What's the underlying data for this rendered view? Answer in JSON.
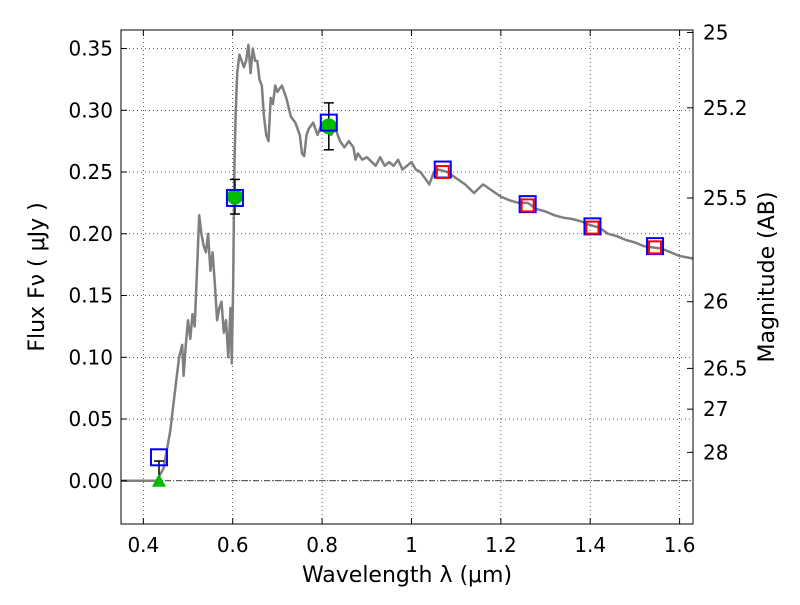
{
  "chart_data": {
    "type": "line",
    "xlabel": "Wavelength  λ (μm)",
    "ylabel": "Flux  Fν  ( μJy )",
    "ylabel_right": "Magnitude (AB)",
    "xlim": [
      0.35,
      1.63
    ],
    "ylim": [
      -0.035,
      0.365
    ],
    "grid": true,
    "x_ticks": [
      0.4,
      0.6,
      0.8,
      1.0,
      1.2,
      1.4,
      1.6
    ],
    "x_tick_labels": [
      "0.4",
      "0.6",
      "0.8",
      "1",
      "1.2",
      "1.4",
      "1.6"
    ],
    "y_ticks": [
      0.0,
      0.05,
      0.1,
      0.15,
      0.2,
      0.25,
      0.3,
      0.35
    ],
    "y_tick_labels": [
      "0.00",
      "0.05",
      "0.10",
      "0.15",
      "0.20",
      "0.25",
      "0.30",
      "0.35"
    ],
    "right_ticks": [
      {
        "label": "25",
        "flux": 0.363
      },
      {
        "label": "25.2",
        "flux": 0.302
      },
      {
        "label": "25.5",
        "flux": 0.229
      },
      {
        "label": "26",
        "flux": 0.145
      },
      {
        "label": "26.5",
        "flux": 0.091
      },
      {
        "label": "27",
        "flux": 0.058
      },
      {
        "label": "28",
        "flux": 0.023
      }
    ],
    "series": [
      {
        "name": "model SED",
        "kind": "line",
        "color": "#7f7f7f",
        "x": [
          0.35,
          0.43,
          0.445,
          0.46,
          0.47,
          0.48,
          0.487,
          0.49,
          0.495,
          0.5,
          0.505,
          0.51,
          0.515,
          0.52,
          0.525,
          0.53,
          0.535,
          0.54,
          0.545,
          0.55,
          0.555,
          0.56,
          0.565,
          0.57,
          0.575,
          0.58,
          0.585,
          0.59,
          0.595,
          0.598,
          0.601,
          0.604,
          0.607,
          0.61,
          0.615,
          0.62,
          0.625,
          0.63,
          0.635,
          0.64,
          0.645,
          0.65,
          0.655,
          0.66,
          0.665,
          0.67,
          0.675,
          0.68,
          0.685,
          0.69,
          0.695,
          0.7,
          0.71,
          0.72,
          0.73,
          0.74,
          0.75,
          0.755,
          0.76,
          0.765,
          0.77,
          0.78,
          0.79,
          0.8,
          0.81,
          0.82,
          0.83,
          0.84,
          0.85,
          0.86,
          0.87,
          0.875,
          0.88,
          0.89,
          0.9,
          0.92,
          0.93,
          0.94,
          0.95,
          0.96,
          0.97,
          0.98,
          0.99,
          1.0,
          1.01,
          1.02,
          1.03,
          1.04,
          1.05,
          1.06,
          1.08,
          1.1,
          1.12,
          1.14,
          1.16,
          1.18,
          1.2,
          1.22,
          1.24,
          1.26,
          1.28,
          1.3,
          1.32,
          1.34,
          1.36,
          1.38,
          1.4,
          1.42,
          1.44,
          1.46,
          1.48,
          1.5,
          1.52,
          1.54,
          1.56,
          1.58,
          1.6,
          1.63
        ],
        "y": [
          0.0,
          0.0,
          0.01,
          0.04,
          0.07,
          0.1,
          0.11,
          0.085,
          0.11,
          0.13,
          0.115,
          0.135,
          0.125,
          0.17,
          0.215,
          0.2,
          0.19,
          0.185,
          0.2,
          0.17,
          0.185,
          0.16,
          0.13,
          0.14,
          0.145,
          0.12,
          0.13,
          0.1,
          0.14,
          0.095,
          0.16,
          0.26,
          0.3,
          0.33,
          0.345,
          0.34,
          0.335,
          0.34,
          0.353,
          0.33,
          0.35,
          0.34,
          0.34,
          0.325,
          0.32,
          0.295,
          0.28,
          0.275,
          0.31,
          0.305,
          0.32,
          0.315,
          0.32,
          0.31,
          0.295,
          0.29,
          0.28,
          0.265,
          0.263,
          0.28,
          0.285,
          0.29,
          0.28,
          0.29,
          0.29,
          0.28,
          0.285,
          0.275,
          0.27,
          0.275,
          0.27,
          0.26,
          0.265,
          0.26,
          0.262,
          0.255,
          0.262,
          0.255,
          0.258,
          0.255,
          0.26,
          0.252,
          0.255,
          0.258,
          0.252,
          0.25,
          0.245,
          0.24,
          0.25,
          0.252,
          0.25,
          0.245,
          0.24,
          0.233,
          0.24,
          0.235,
          0.23,
          0.227,
          0.225,
          0.225,
          0.22,
          0.218,
          0.215,
          0.213,
          0.212,
          0.21,
          0.207,
          0.205,
          0.2,
          0.198,
          0.195,
          0.193,
          0.19,
          0.189,
          0.188,
          0.185,
          0.182,
          0.18
        ]
      },
      {
        "name": "detections",
        "kind": "circle",
        "color": "#00bb00",
        "x": [
          0.605,
          0.815
        ],
        "y": [
          0.23,
          0.287
        ],
        "yerr": [
          0.014,
          0.019
        ]
      },
      {
        "name": "upper limit",
        "kind": "triangle",
        "color": "#00bb00",
        "x": [
          0.435
        ],
        "y": [
          0.0
        ],
        "yerr_up": [
          0.016
        ]
      },
      {
        "name": "model photometry (blue)",
        "kind": "square",
        "color": "#0000ff",
        "x": [
          0.435,
          0.605,
          0.815,
          1.07,
          1.26,
          1.405,
          1.545
        ],
        "y": [
          0.019,
          0.229,
          0.29,
          0.252,
          0.224,
          0.206,
          0.19
        ]
      },
      {
        "name": "model photometry (red)",
        "kind": "square",
        "color": "#ff0000",
        "x": [
          1.07,
          1.26,
          1.405,
          1.545
        ],
        "y": [
          0.25,
          0.223,
          0.205,
          0.189
        ]
      }
    ]
  }
}
